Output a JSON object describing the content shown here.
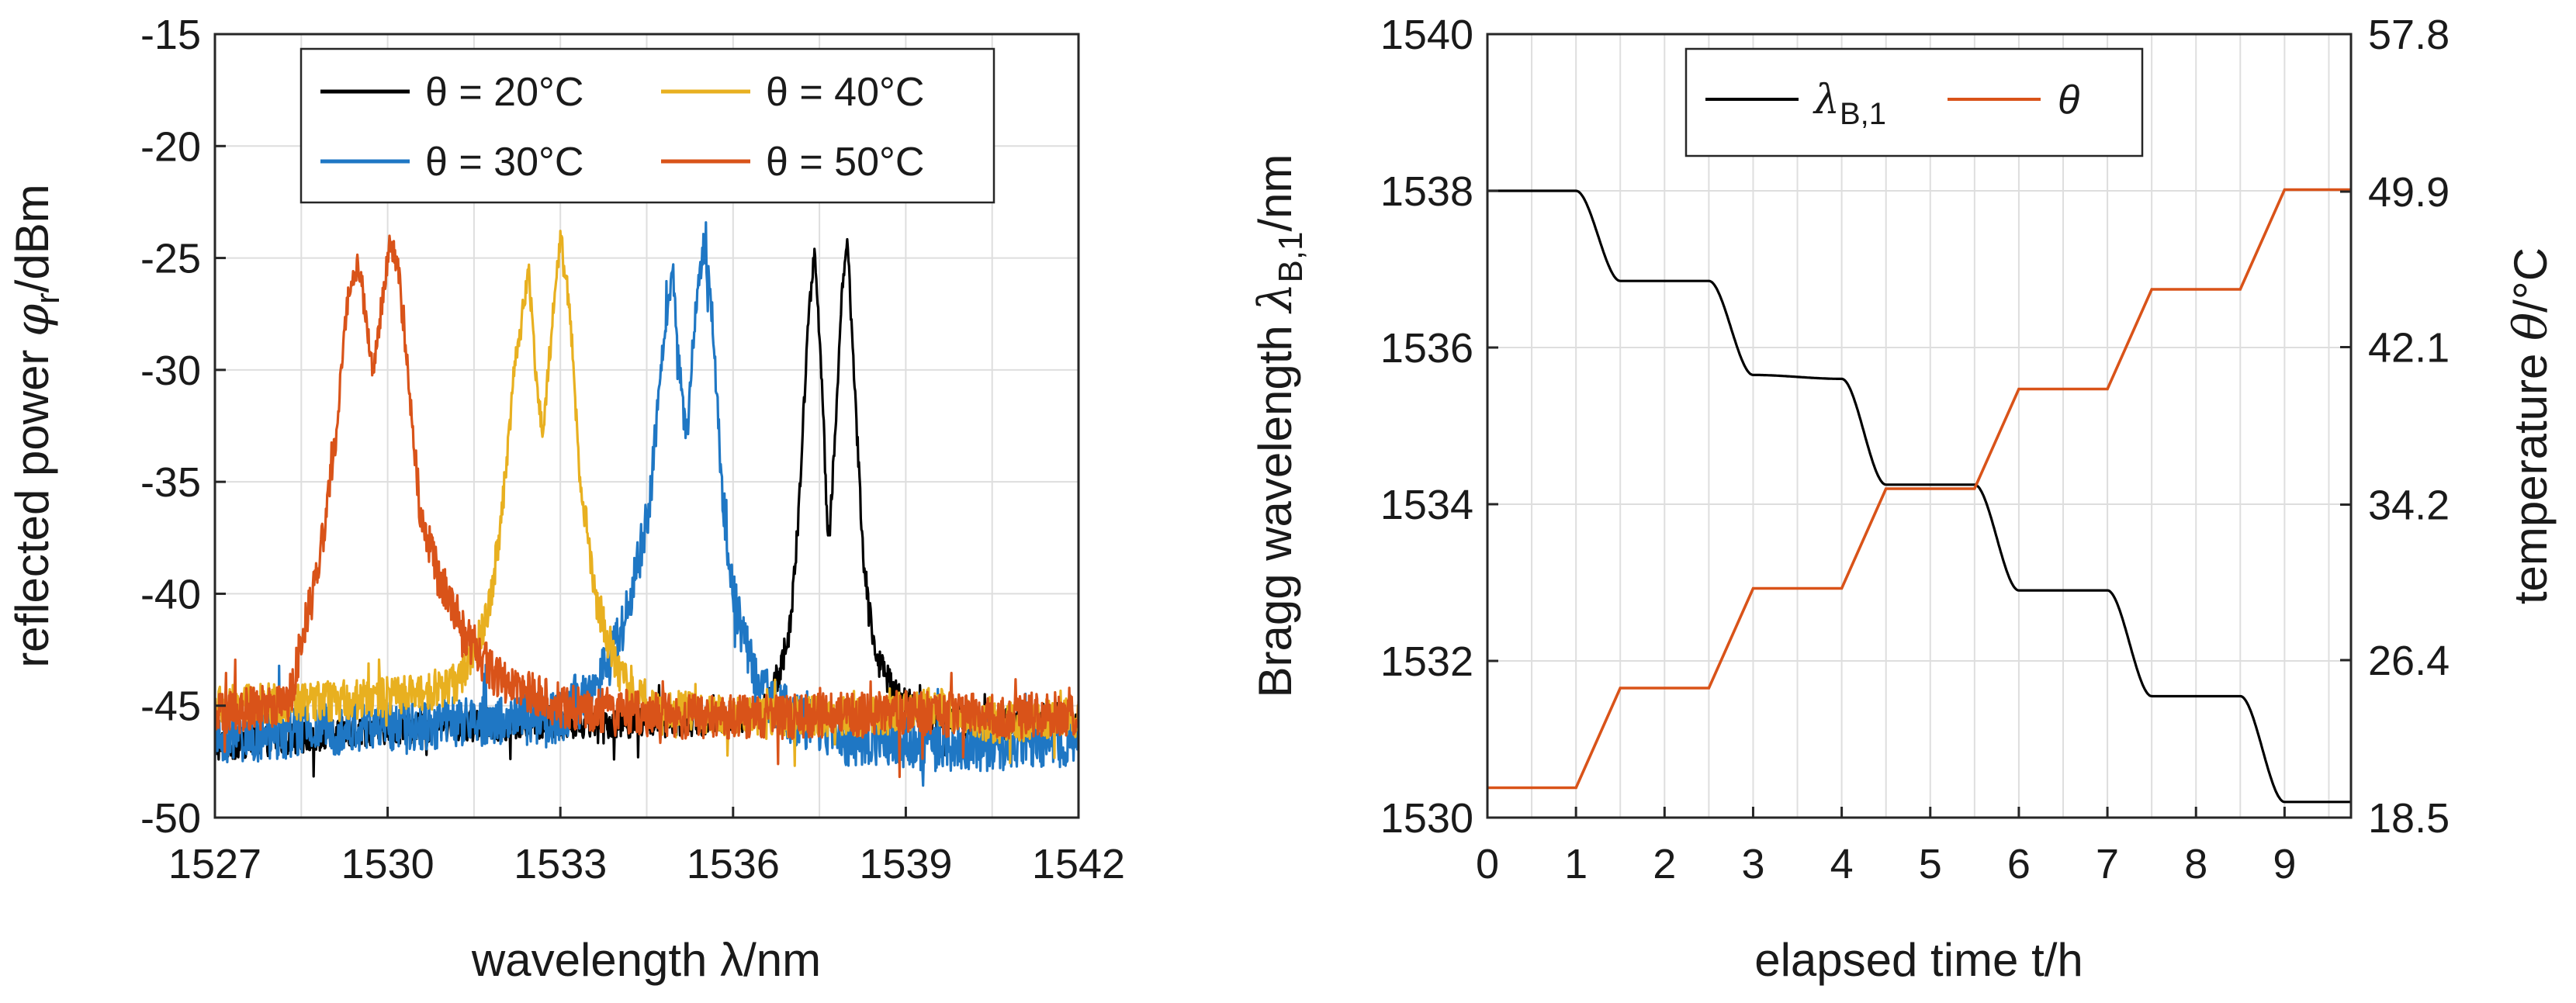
{
  "chart_data": [
    {
      "type": "line",
      "title": "",
      "xlabel": "wavelength λ/nm",
      "ylabel_prefix": "reflected power ",
      "ylabel_symbol": "φ",
      "ylabel_subscript": "r",
      "ylabel_suffix": "/dBm",
      "xlim": [
        1527,
        1542
      ],
      "ylim": [
        -50,
        -15
      ],
      "xticks": [
        "1527",
        "1530",
        "1533",
        "1536",
        "1539",
        "1542"
      ],
      "yticks": [
        "-15",
        "-20",
        "-25",
        "-30",
        "-35",
        "-40",
        "-45",
        "-50"
      ],
      "grid": true,
      "legend_position": "top",
      "series": [
        {
          "name": "θ = 20°C",
          "color": "#000000",
          "noise_amplitude": 0.7,
          "points": [
            [
              1527,
              -46.8
            ],
            [
              1530,
              -46.0
            ],
            [
              1533,
              -45.8
            ],
            [
              1535,
              -45.7
            ],
            [
              1536.5,
              -45.5
            ],
            [
              1536.8,
              -43.5
            ],
            [
              1537.0,
              -41.5
            ],
            [
              1537.15,
              -36
            ],
            [
              1537.3,
              -28
            ],
            [
              1537.42,
              -24.5
            ],
            [
              1537.55,
              -31
            ],
            [
              1537.65,
              -38
            ],
            [
              1537.75,
              -34
            ],
            [
              1537.88,
              -27
            ],
            [
              1537.98,
              -24.1
            ],
            [
              1538.1,
              -30
            ],
            [
              1538.25,
              -38
            ],
            [
              1538.45,
              -42.5
            ],
            [
              1538.8,
              -44.5
            ],
            [
              1539.5,
              -45.5
            ],
            [
              1540.5,
              -45.8
            ],
            [
              1542,
              -45.5
            ]
          ]
        },
        {
          "name": "θ = 30°C",
          "color": "#1f77c4",
          "noise_amplitude": 1.2,
          "points": [
            [
              1527,
              -46.5
            ],
            [
              1529,
              -46
            ],
            [
              1531,
              -45.8
            ],
            [
              1533,
              -45.5
            ],
            [
              1533.6,
              -44.5
            ],
            [
              1534.0,
              -42
            ],
            [
              1534.25,
              -40
            ],
            [
              1534.55,
              -36
            ],
            [
              1534.75,
              -30
            ],
            [
              1534.95,
              -25.5
            ],
            [
              1535.1,
              -31
            ],
            [
              1535.2,
              -33
            ],
            [
              1535.35,
              -27
            ],
            [
              1535.5,
              -24.3
            ],
            [
              1535.65,
              -28
            ],
            [
              1535.8,
              -35
            ],
            [
              1536.0,
              -40
            ],
            [
              1536.4,
              -44
            ],
            [
              1537,
              -45.5
            ],
            [
              1538,
              -46.5
            ],
            [
              1540,
              -46.8
            ],
            [
              1542,
              -46.5
            ]
          ]
        },
        {
          "name": "θ = 40°C",
          "color": "#e8b020",
          "noise_amplitude": 0.9,
          "points": [
            [
              1527,
              -45
            ],
            [
              1529,
              -44.8
            ],
            [
              1530.5,
              -44.5
            ],
            [
              1531.2,
              -44
            ],
            [
              1531.6,
              -42
            ],
            [
              1531.8,
              -40
            ],
            [
              1532.0,
              -36
            ],
            [
              1532.2,
              -30
            ],
            [
              1532.45,
              -25.5
            ],
            [
              1532.6,
              -31
            ],
            [
              1532.7,
              -33
            ],
            [
              1532.85,
              -28
            ],
            [
              1533.0,
              -24
            ],
            [
              1533.15,
              -27
            ],
            [
              1533.35,
              -35
            ],
            [
              1533.6,
              -40
            ],
            [
              1534.0,
              -43.5
            ],
            [
              1534.6,
              -45
            ],
            [
              1536,
              -45.5
            ],
            [
              1538.5,
              -45.5
            ],
            [
              1539.5,
              -45
            ],
            [
              1540.5,
              -45.8
            ],
            [
              1542,
              -45.5
            ]
          ]
        },
        {
          "name": "θ = 50°C",
          "color": "#d95319",
          "noise_amplitude": 1.0,
          "points": [
            [
              1527,
              -45.5
            ],
            [
              1528.3,
              -44.8
            ],
            [
              1528.5,
              -42
            ],
            [
              1528.7,
              -40
            ],
            [
              1528.9,
              -37
            ],
            [
              1529.1,
              -33
            ],
            [
              1529.3,
              -27
            ],
            [
              1529.48,
              -25.2
            ],
            [
              1529.62,
              -27.5
            ],
            [
              1529.75,
              -30.2
            ],
            [
              1529.9,
              -27
            ],
            [
              1530.05,
              -24.2
            ],
            [
              1530.2,
              -25.8
            ],
            [
              1530.35,
              -30
            ],
            [
              1530.55,
              -36
            ],
            [
              1530.85,
              -39
            ],
            [
              1531.4,
              -42
            ],
            [
              1532,
              -44
            ],
            [
              1533,
              -45
            ],
            [
              1535,
              -45.5
            ],
            [
              1537,
              -45.5
            ],
            [
              1539,
              -45.3
            ],
            [
              1540.5,
              -45.5
            ],
            [
              1542,
              -45.3
            ]
          ]
        }
      ]
    },
    {
      "type": "line",
      "title": "",
      "xlabel": "elapsed time t/h",
      "ylabel_prefix": "Bragg wavelength ",
      "ylabel_symbol": "λ",
      "ylabel_subscript": "B,1",
      "ylabel_suffix": "/nm",
      "y2label_prefix": "temperature ",
      "y2label_symbol": "θ",
      "y2label_suffix": "/°C",
      "xlim": [
        0,
        9.75
      ],
      "ylim": [
        1530,
        1540
      ],
      "y2lim": [
        18.5,
        57.8
      ],
      "xticks": [
        "0",
        "1",
        "2",
        "3",
        "4",
        "5",
        "6",
        "7",
        "8",
        "9"
      ],
      "yticks": [
        "1540",
        "1538",
        "1536",
        "1534",
        "1532",
        "1530"
      ],
      "y2ticks": [
        "57.8",
        "49.9",
        "42.1",
        "34.2",
        "26.4",
        "18.5"
      ],
      "grid": true,
      "legend_position": "top",
      "series": [
        {
          "name_main": "λ",
          "name_sub": "B,1",
          "axis": "left",
          "color": "#000000",
          "points": [
            [
              0,
              1538.0
            ],
            [
              1.0,
              1538.0
            ],
            [
              1.5,
              1536.85
            ],
            [
              2.5,
              1536.85
            ],
            [
              3.0,
              1535.65
            ],
            [
              4.0,
              1535.6
            ],
            [
              4.5,
              1534.25
            ],
            [
              5.5,
              1534.25
            ],
            [
              6.0,
              1532.9
            ],
            [
              7.0,
              1532.9
            ],
            [
              7.5,
              1531.55
            ],
            [
              8.5,
              1531.55
            ],
            [
              9.0,
              1530.2
            ],
            [
              9.75,
              1530.2
            ]
          ]
        },
        {
          "name": "θ",
          "axis": "right",
          "color": "#d95319",
          "points": [
            [
              0,
              20
            ],
            [
              1,
              20
            ],
            [
              1.5,
              25
            ],
            [
              2.5,
              25
            ],
            [
              3,
              30
            ],
            [
              4,
              30
            ],
            [
              4.5,
              35
            ],
            [
              5.5,
              35
            ],
            [
              6,
              40
            ],
            [
              7,
              40
            ],
            [
              7.5,
              45
            ],
            [
              8.5,
              45
            ],
            [
              9,
              50
            ],
            [
              9.75,
              50
            ]
          ]
        }
      ]
    }
  ]
}
